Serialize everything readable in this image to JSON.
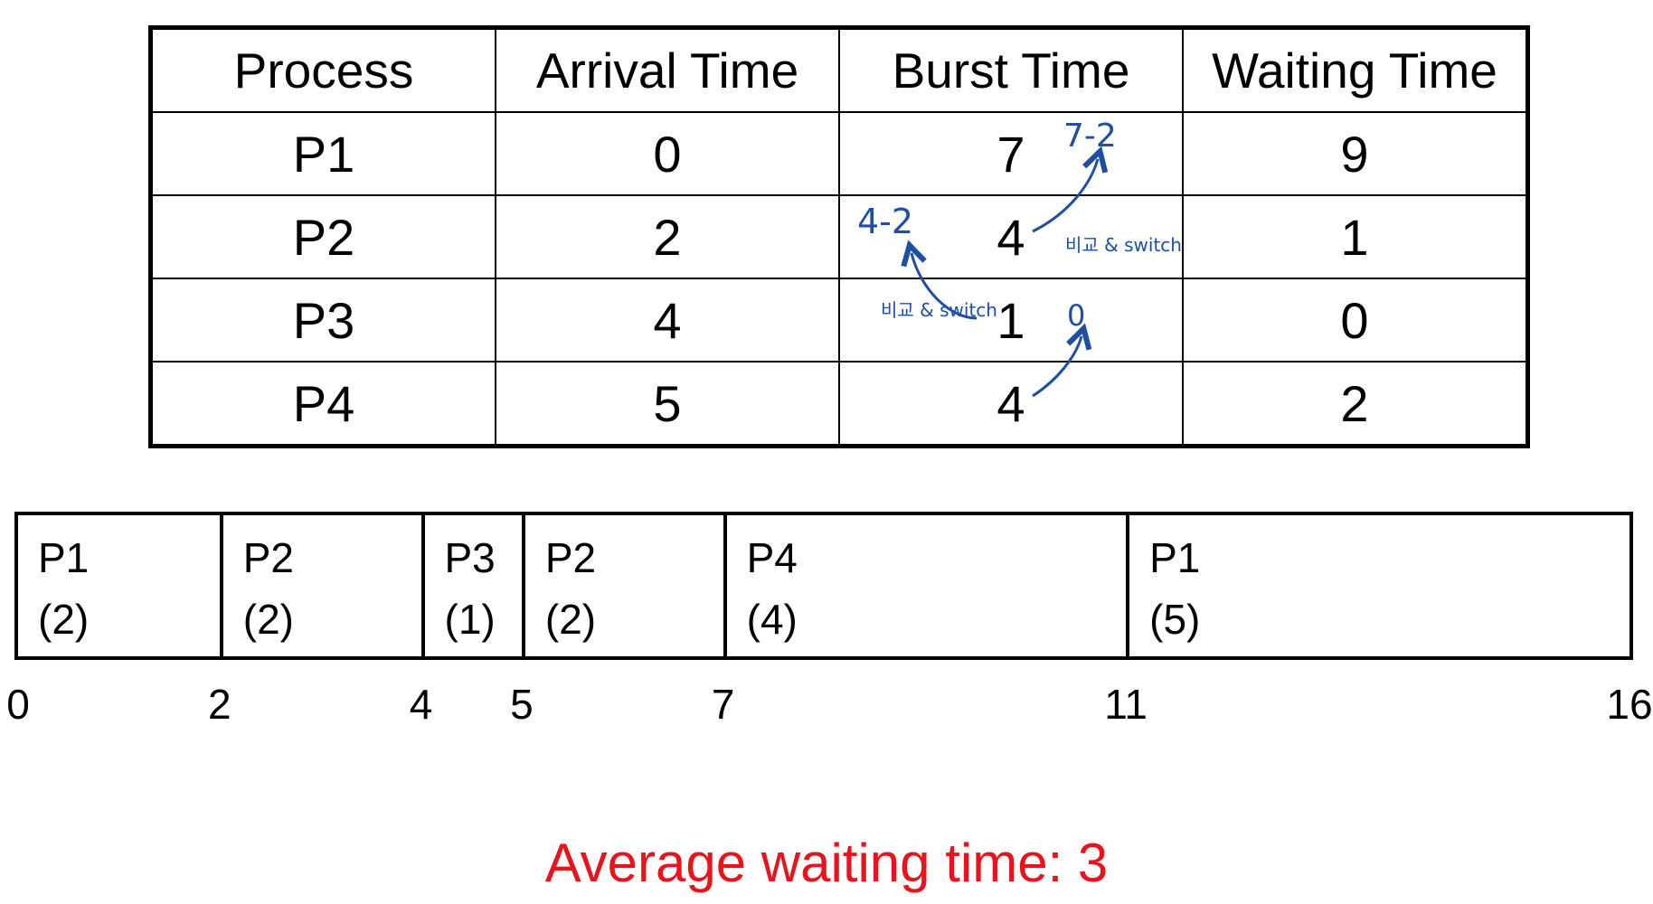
{
  "table": {
    "headers": [
      "Process",
      "Arrival Time",
      "Burst Time",
      "Waiting Time"
    ],
    "rows": [
      {
        "process": "P1",
        "arrival": "0",
        "burst": "7",
        "waiting": "9"
      },
      {
        "process": "P2",
        "arrival": "2",
        "burst": "4",
        "waiting": "1"
      },
      {
        "process": "P3",
        "arrival": "4",
        "burst": "1",
        "waiting": "0"
      },
      {
        "process": "P4",
        "arrival": "5",
        "burst": "4",
        "waiting": "2"
      }
    ]
  },
  "annotations": {
    "p1_remaining": "7-2",
    "p2_remaining": "4-2",
    "p3_remaining": "0",
    "compare_switch_1": "비교 & switch",
    "compare_switch_2": "비교 & switch",
    "color": "#1e4fa0"
  },
  "gantt": {
    "blocks": [
      {
        "process": "P1",
        "duration": "(2)",
        "start": 0,
        "end": 2
      },
      {
        "process": "P2",
        "duration": "(2)",
        "start": 2,
        "end": 4
      },
      {
        "process": "P3",
        "duration": "(1)",
        "start": 4,
        "end": 5
      },
      {
        "process": "P2",
        "duration": "(2)",
        "start": 5,
        "end": 7
      },
      {
        "process": "P4",
        "duration": "(4)",
        "start": 7,
        "end": 11
      },
      {
        "process": "P1",
        "duration": "(5)",
        "start": 11,
        "end": 16
      }
    ],
    "ticks": [
      "0",
      "2",
      "4",
      "5",
      "7",
      "11",
      "16"
    ]
  },
  "summary": {
    "text": "Average waiting time: 3",
    "color": "#e8131b"
  }
}
